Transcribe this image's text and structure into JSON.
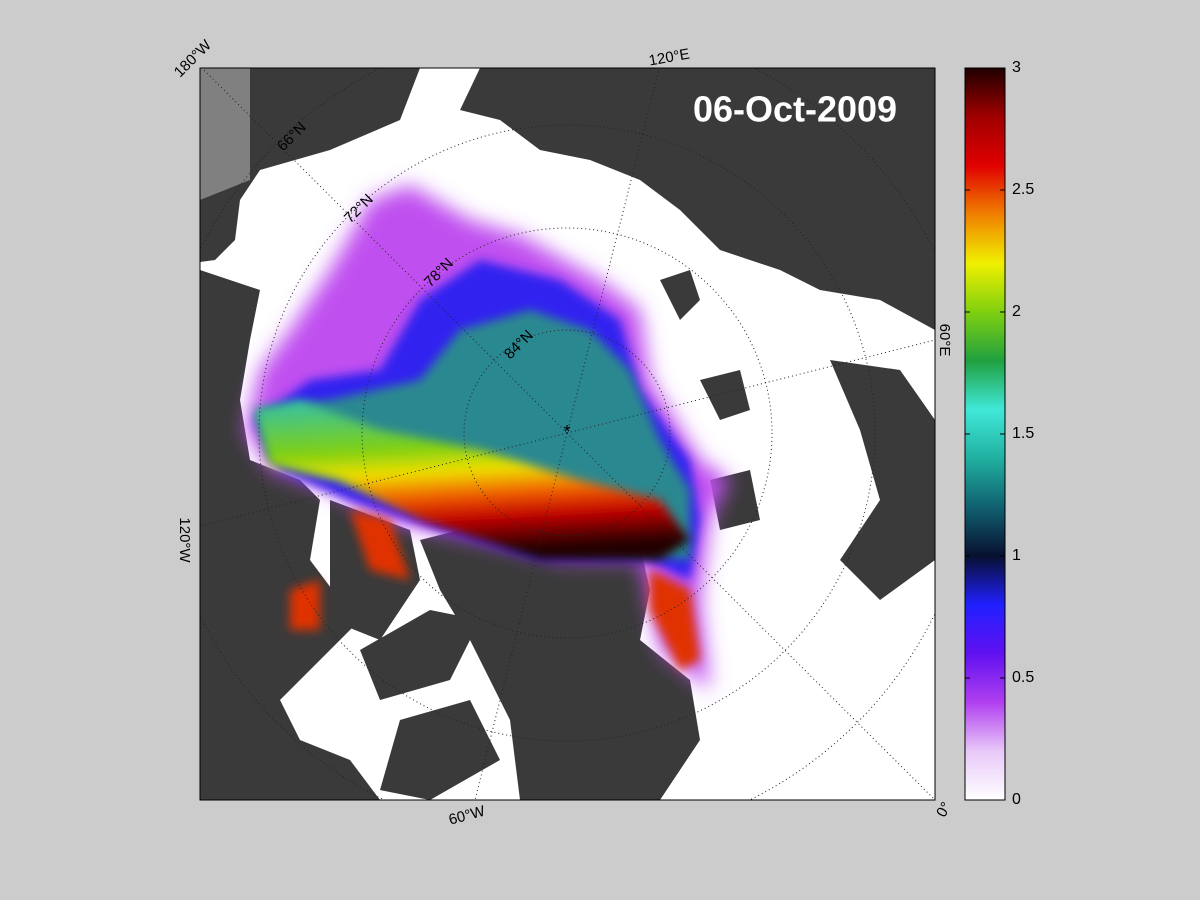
{
  "map": {
    "title": "06-Oct-2009",
    "lat_labels": [
      "66°N",
      "72°N",
      "78°N",
      "84°N"
    ],
    "lon_labels": [
      "180°W",
      "120°E",
      "60°E",
      "0°",
      "60°W",
      "120°W"
    ]
  },
  "colorbar": {
    "lim": [
      0,
      3
    ],
    "ticks": [
      0,
      0.5,
      1,
      1.5,
      2,
      2.5,
      3
    ],
    "colormap": [
      "#ffffff",
      "#e8c8f8",
      "#b040f0",
      "#6010f0",
      "#2020ff",
      "#081030",
      "#106070",
      "#20b0a0",
      "#40e8d8",
      "#20a040",
      "#80d010",
      "#f0f000",
      "#f08000",
      "#e00000",
      "#a00000",
      "#200000"
    ]
  }
}
